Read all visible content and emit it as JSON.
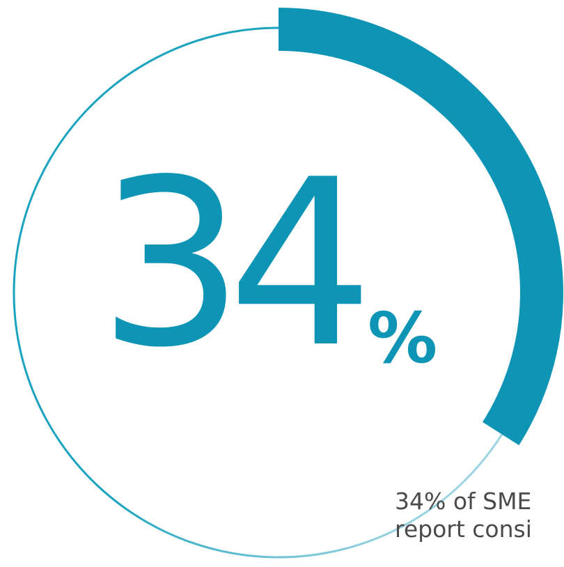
{
  "chart_data": {
    "type": "pie",
    "value_percent": 34,
    "remainder_percent": 66,
    "center_number": "34",
    "center_unit": "%",
    "caption_lines": [
      "34% of SME",
      "report consi"
    ],
    "colors": {
      "accent": "#0e95b6",
      "ring": "#1aa3be",
      "ring_fade": "#c8e3ec",
      "caption": "#4a4a4a",
      "background": "#ffffff"
    }
  }
}
